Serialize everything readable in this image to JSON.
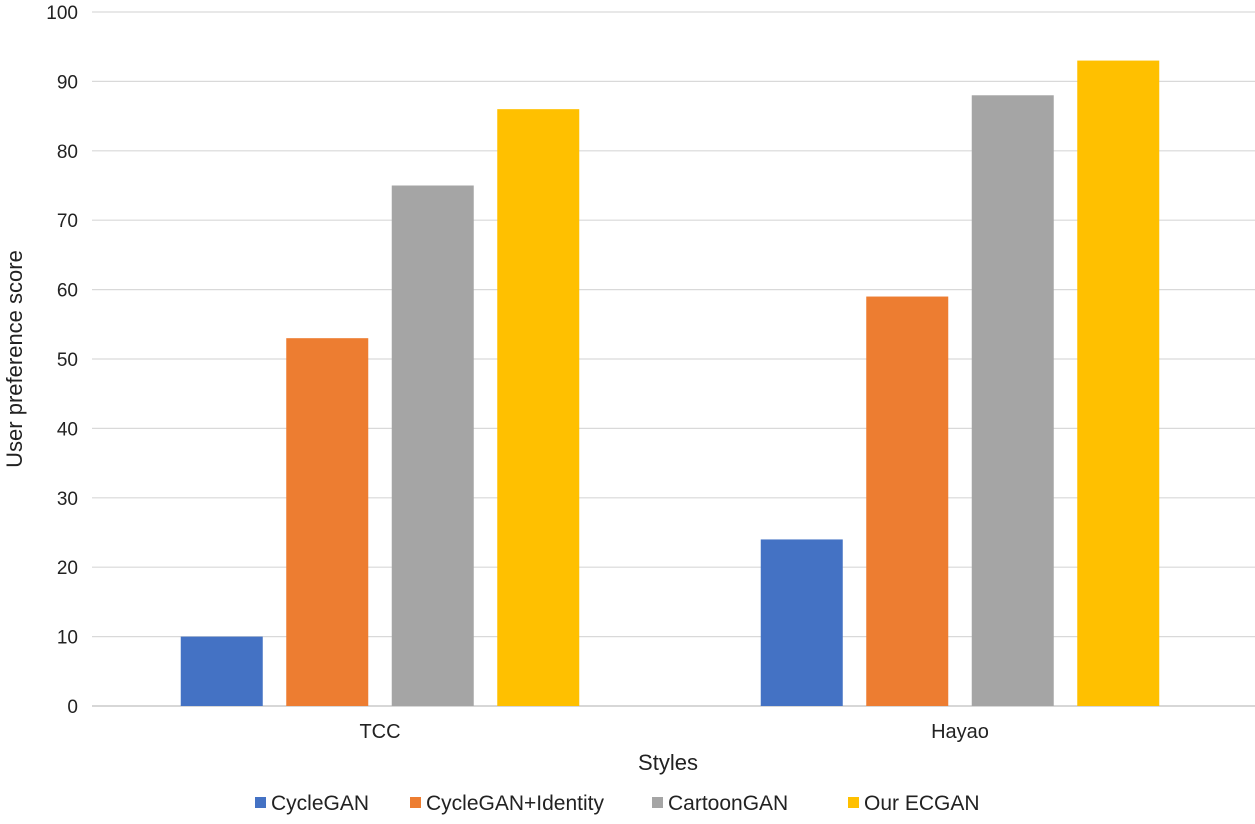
{
  "chart_data": {
    "type": "bar",
    "title": "",
    "xlabel": "Styles",
    "ylabel": "User preference score",
    "ylim": [
      0,
      100
    ],
    "yticks": [
      0,
      10,
      20,
      30,
      40,
      50,
      60,
      70,
      80,
      90,
      100
    ],
    "grid": true,
    "legend_position": "bottom",
    "categories": [
      "TCC",
      "Hayao"
    ],
    "series": [
      {
        "name": "CycleGAN",
        "color": "#4472C4",
        "values": [
          10,
          24
        ]
      },
      {
        "name": "CycleGAN+Identity",
        "color": "#ED7D31",
        "values": [
          53,
          59
        ]
      },
      {
        "name": "CartoonGAN",
        "color": "#A5A5A5",
        "values": [
          75,
          88
        ]
      },
      {
        "name": "Our ECGAN",
        "color": "#FFC000",
        "values": [
          86,
          93
        ]
      }
    ]
  }
}
